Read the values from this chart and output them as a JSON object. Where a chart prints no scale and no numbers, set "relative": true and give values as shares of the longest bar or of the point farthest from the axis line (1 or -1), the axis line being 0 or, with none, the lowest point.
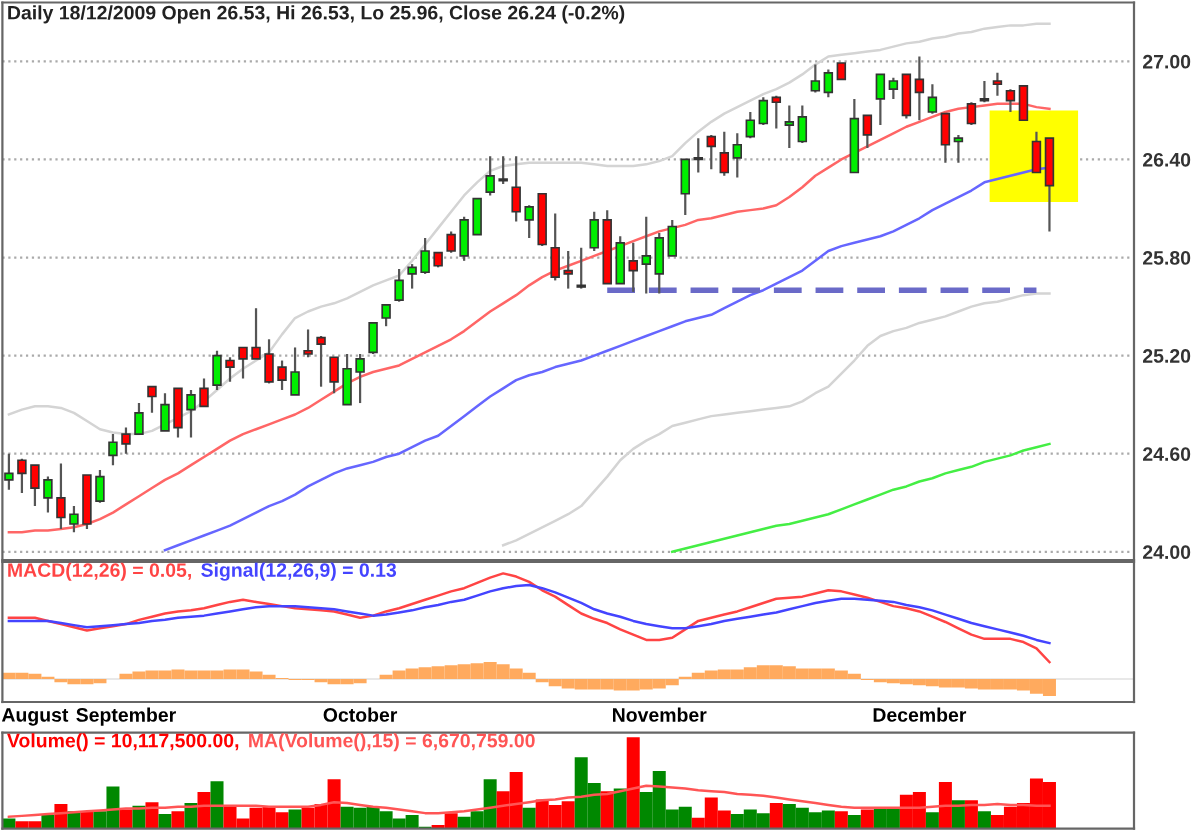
{
  "chart_data": [
    {
      "type": "candlestick",
      "title": "Daily 18/12/2009 Open 26.53, Hi 26.53, Lo 25.96, Close 26.24 (-0.2%)",
      "categories": [
        null,
        null,
        null,
        null,
        null,
        null,
        null,
        null,
        null,
        null,
        null,
        null,
        null,
        null,
        null,
        null,
        null,
        null,
        null,
        null,
        null,
        null,
        null,
        null,
        null,
        null,
        null,
        null,
        null,
        null,
        null,
        null,
        null,
        null,
        null,
        null,
        null,
        null,
        null,
        null,
        null,
        null,
        null,
        null,
        null,
        null,
        null,
        null,
        null,
        null,
        null,
        null,
        null,
        null,
        null,
        null,
        null,
        null,
        null,
        null,
        null,
        null,
        null,
        null,
        null,
        null,
        null,
        null,
        null,
        null,
        null,
        null,
        null,
        null,
        null,
        null,
        null,
        null,
        null,
        null,
        null
      ],
      "ohlc": [
        [
          24.44,
          24.6,
          24.38,
          24.48
        ],
        [
          24.56,
          24.57,
          24.36,
          24.48
        ],
        [
          24.53,
          24.53,
          24.28,
          24.39
        ],
        [
          24.33,
          24.46,
          24.24,
          24.44
        ],
        [
          24.33,
          24.54,
          24.14,
          24.21
        ],
        [
          24.17,
          24.28,
          24.12,
          24.23
        ],
        [
          24.47,
          24.47,
          24.14,
          24.17
        ],
        [
          24.31,
          24.5,
          24.3,
          24.46
        ],
        [
          24.59,
          24.72,
          24.53,
          24.67
        ],
        [
          24.72,
          24.76,
          24.6,
          24.66
        ],
        [
          24.72,
          24.91,
          24.72,
          24.85
        ],
        [
          25.01,
          25.01,
          24.85,
          24.95
        ],
        [
          24.74,
          24.97,
          24.74,
          24.9
        ],
        [
          25.0,
          25.0,
          24.7,
          24.76
        ],
        [
          24.87,
          24.99,
          24.7,
          24.96
        ],
        [
          25.0,
          25.06,
          24.89,
          24.89
        ],
        [
          25.02,
          25.23,
          24.99,
          25.2
        ],
        [
          25.17,
          25.19,
          25.04,
          25.13
        ],
        [
          25.25,
          25.25,
          25.06,
          25.18
        ],
        [
          25.25,
          25.49,
          25.18,
          25.18
        ],
        [
          25.21,
          25.3,
          25.03,
          25.04
        ],
        [
          25.13,
          25.17,
          24.99,
          25.05
        ],
        [
          24.96,
          25.25,
          24.96,
          25.1
        ],
        [
          25.23,
          25.36,
          25.19,
          25.21
        ],
        [
          25.31,
          25.32,
          25.01,
          25.27
        ],
        [
          25.19,
          25.19,
          24.97,
          25.04
        ],
        [
          24.9,
          25.21,
          24.9,
          25.12
        ],
        [
          25.1,
          25.21,
          24.91,
          25.18
        ],
        [
          25.22,
          25.4,
          25.21,
          25.4
        ],
        [
          25.43,
          25.51,
          25.38,
          25.51
        ],
        [
          25.54,
          25.73,
          25.53,
          25.66
        ],
        [
          25.7,
          25.76,
          25.61,
          25.74
        ],
        [
          25.71,
          25.92,
          25.7,
          25.84
        ],
        [
          25.83,
          25.83,
          25.74,
          25.75
        ],
        [
          25.94,
          25.96,
          25.83,
          25.84
        ],
        [
          25.81,
          26.05,
          25.78,
          26.03
        ],
        [
          25.94,
          26.16,
          25.94,
          26.16
        ],
        [
          26.2,
          26.42,
          26.18,
          26.3
        ],
        [
          26.28,
          26.42,
          26.25,
          26.27
        ],
        [
          26.23,
          26.42,
          26.02,
          26.08
        ],
        [
          26.03,
          26.12,
          25.92,
          26.11
        ],
        [
          26.19,
          26.19,
          25.87,
          25.88
        ],
        [
          25.86,
          26.07,
          25.66,
          25.68
        ],
        [
          25.72,
          25.84,
          25.61,
          25.7
        ],
        [
          25.62,
          25.86,
          25.61,
          25.63
        ],
        [
          25.86,
          26.08,
          25.84,
          26.03
        ],
        [
          26.03,
          26.09,
          25.64,
          25.64
        ],
        [
          25.64,
          25.93,
          25.64,
          25.89
        ],
        [
          25.78,
          25.89,
          25.59,
          25.72
        ],
        [
          25.76,
          26.05,
          25.58,
          25.81
        ],
        [
          25.7,
          25.95,
          25.58,
          25.92
        ],
        [
          25.81,
          26.03,
          25.81,
          25.99
        ],
        [
          26.19,
          26.4,
          26.06,
          26.4
        ],
        [
          26.4,
          26.53,
          26.32,
          26.41
        ],
        [
          26.54,
          26.55,
          26.34,
          26.48
        ],
        [
          26.44,
          26.57,
          26.3,
          26.32
        ],
        [
          26.41,
          26.56,
          26.29,
          26.49
        ],
        [
          26.54,
          26.69,
          26.53,
          26.64
        ],
        [
          26.62,
          26.78,
          26.61,
          26.76
        ],
        [
          26.78,
          26.79,
          26.59,
          26.75
        ],
        [
          26.61,
          26.73,
          26.47,
          26.63
        ],
        [
          26.51,
          26.73,
          26.5,
          26.66
        ],
        [
          26.82,
          26.98,
          26.81,
          26.88
        ],
        [
          26.81,
          26.95,
          26.78,
          26.93
        ],
        [
          26.99,
          26.99,
          26.89,
          26.89
        ],
        [
          26.32,
          26.77,
          26.32,
          26.65
        ],
        [
          26.67,
          26.67,
          26.47,
          26.55
        ],
        [
          26.77,
          26.92,
          26.61,
          26.92
        ],
        [
          26.83,
          26.9,
          26.77,
          26.88
        ],
        [
          26.92,
          26.92,
          26.65,
          26.67
        ],
        [
          26.89,
          27.03,
          26.64,
          26.81
        ],
        [
          26.69,
          26.86,
          26.68,
          26.78
        ],
        [
          26.68,
          26.68,
          26.38,
          26.49
        ],
        [
          26.51,
          26.55,
          26.38,
          26.53
        ],
        [
          26.74,
          26.75,
          26.61,
          26.62
        ],
        [
          26.76,
          26.88,
          26.75,
          26.77
        ],
        [
          26.88,
          26.93,
          26.79,
          26.86
        ],
        [
          26.82,
          26.83,
          26.69,
          26.76
        ],
        [
          26.85,
          26.85,
          26.64,
          26.64
        ],
        [
          26.51,
          26.57,
          26.32,
          26.32
        ],
        [
          26.53,
          26.53,
          25.96,
          26.24
        ]
      ],
      "colors": [
        "#00ee00",
        "#ff0000",
        "#ff0000",
        "#00ee00",
        "#ff0000",
        "#00ee00",
        "#ff0000",
        "#00ee00",
        "#00ee00",
        "#ff0000",
        "#00ee00",
        "#ff0000",
        "#00ee00",
        "#ff0000",
        "#00ee00",
        "#ff0000",
        "#00ee00",
        "#ff0000",
        "#ff0000",
        "#ff0000",
        "#ff0000",
        "#ff0000",
        "#00ee00",
        "#ff0000",
        "#ff0000",
        "#ff0000",
        "#00ee00",
        "#00ee00",
        "#00ee00",
        "#00ee00",
        "#00ee00",
        "#00ee00",
        "#00ee00",
        "#ff0000",
        "#ff0000",
        "#00ee00",
        "#00ee00",
        "#00ee00",
        "#ff0000",
        "#ff0000",
        "#00ee00",
        "#ff0000",
        "#ff0000",
        "#ff0000",
        "#00ee00",
        "#00ee00",
        "#ff0000",
        "#00ee00",
        "#ff0000",
        "#00ee00",
        "#00ee00",
        "#00ee00",
        "#00ee00",
        "#00ee00",
        "#ff0000",
        "#ff0000",
        "#00ee00",
        "#00ee00",
        "#00ee00",
        "#ff0000",
        "#00ee00",
        "#00ee00",
        "#00ee00",
        "#00ee00",
        "#ff0000",
        "#00ee00",
        "#ff0000",
        "#00ee00",
        "#00ee00",
        "#ff0000",
        "#ff0000",
        "#00ee00",
        "#ff0000",
        "#00ee00",
        "#ff0000",
        "#00ee00",
        "#ff0000",
        "#ff0000",
        "#ff0000",
        "#ff0000",
        "#ff0000"
      ],
      "series": [
        {
          "type": "line",
          "color": "#ff6666",
          "values": [
            24.12,
            24.12,
            24.13,
            24.13,
            24.14,
            24.15,
            24.17,
            24.2,
            24.24,
            24.29,
            24.34,
            24.39,
            24.44,
            24.48,
            24.53,
            24.58,
            24.63,
            24.68,
            24.72,
            24.75,
            24.78,
            24.81,
            24.84,
            24.88,
            24.93,
            24.98,
            25.03,
            25.07,
            25.1,
            25.12,
            25.14,
            25.18,
            25.22,
            25.26,
            25.3,
            25.35,
            25.41,
            25.47,
            25.52,
            25.57,
            25.63,
            25.68,
            25.72,
            25.75,
            25.78,
            25.81,
            25.84,
            25.87,
            25.9,
            25.93,
            25.96,
            25.98,
            26.0,
            26.03,
            26.04,
            26.06,
            26.08,
            26.09,
            26.1,
            26.12,
            26.17,
            26.23,
            26.3,
            26.35,
            26.4,
            26.44,
            26.48,
            26.52,
            26.56,
            26.6,
            26.63,
            26.66,
            26.69,
            26.71,
            26.72,
            26.73,
            26.74,
            26.74,
            26.74,
            26.72,
            26.71
          ]
        },
        {
          "type": "line",
          "color": "#6666ff",
          "values": [
            null,
            null,
            null,
            null,
            null,
            null,
            null,
            null,
            null,
            null,
            null,
            null,
            24.01,
            24.04,
            24.07,
            24.1,
            24.13,
            24.16,
            24.2,
            24.24,
            24.28,
            24.31,
            24.35,
            24.4,
            24.44,
            24.48,
            24.51,
            24.53,
            24.55,
            24.58,
            24.6,
            24.64,
            24.68,
            24.71,
            24.77,
            24.83,
            24.89,
            24.95,
            25.0,
            25.05,
            25.08,
            25.1,
            25.13,
            25.15,
            25.17,
            25.2,
            25.23,
            25.26,
            25.29,
            25.32,
            25.35,
            25.38,
            25.41,
            25.43,
            25.45,
            25.49,
            25.53,
            25.57,
            25.6,
            25.64,
            25.68,
            25.72,
            25.78,
            25.84,
            25.87,
            25.89,
            25.91,
            25.93,
            25.96,
            26.0,
            26.04,
            26.09,
            26.13,
            26.17,
            26.21,
            26.26,
            26.28,
            26.3,
            26.32,
            26.34,
            26.35
          ]
        },
        {
          "type": "line",
          "color": "#44ee44",
          "values": [
            null,
            null,
            null,
            null,
            null,
            null,
            null,
            null,
            null,
            null,
            null,
            null,
            null,
            null,
            null,
            null,
            null,
            null,
            null,
            null,
            null,
            null,
            null,
            null,
            null,
            null,
            null,
            null,
            null,
            null,
            null,
            null,
            null,
            null,
            null,
            null,
            null,
            null,
            null,
            null,
            null,
            null,
            null,
            null,
            null,
            null,
            null,
            null,
            null,
            null,
            null,
            24.0,
            24.02,
            24.04,
            24.06,
            24.08,
            24.1,
            24.12,
            24.14,
            24.16,
            24.17,
            24.19,
            24.21,
            24.23,
            24.26,
            24.29,
            24.32,
            24.35,
            24.38,
            24.4,
            24.43,
            24.45,
            24.48,
            24.5,
            24.52,
            24.55,
            24.57,
            24.59,
            24.62,
            24.64,
            24.66
          ]
        },
        {
          "type": "line",
          "color": "#d4d4d4",
          "values": [
            24.84,
            24.87,
            24.89,
            24.89,
            24.88,
            24.85,
            24.8,
            24.75,
            24.73,
            24.72,
            24.72,
            24.74,
            24.78,
            24.82,
            24.86,
            24.92,
            24.99,
            25.06,
            25.12,
            25.17,
            25.22,
            25.33,
            25.43,
            25.47,
            25.5,
            25.52,
            25.55,
            25.59,
            25.63,
            25.66,
            25.69,
            25.78,
            25.88,
            25.98,
            26.08,
            26.18,
            26.26,
            26.33,
            26.36,
            26.37,
            26.38,
            26.38,
            26.38,
            26.38,
            26.38,
            26.37,
            26.36,
            26.36,
            26.36,
            26.37,
            26.39,
            26.42,
            26.5,
            26.57,
            26.63,
            26.68,
            26.72,
            26.76,
            26.8,
            26.83,
            26.87,
            26.92,
            26.98,
            27.03,
            27.04,
            27.05,
            27.06,
            27.07,
            27.09,
            27.11,
            27.12,
            27.14,
            27.15,
            27.17,
            27.18,
            27.2,
            27.21,
            27.22,
            27.22,
            27.23,
            27.23
          ]
        },
        {
          "type": "line",
          "color": "#d4d4d4",
          "values": [
            null,
            null,
            null,
            null,
            null,
            null,
            null,
            null,
            null,
            null,
            null,
            null,
            null,
            null,
            null,
            null,
            null,
            null,
            null,
            null,
            null,
            null,
            null,
            null,
            null,
            null,
            null,
            null,
            null,
            null,
            null,
            null,
            null,
            null,
            null,
            null,
            null,
            null,
            24.04,
            24.07,
            24.11,
            24.15,
            24.19,
            24.23,
            24.28,
            24.37,
            24.46,
            24.56,
            24.63,
            24.68,
            24.72,
            24.77,
            24.79,
            24.81,
            24.83,
            24.84,
            24.85,
            24.86,
            24.87,
            24.88,
            24.89,
            24.92,
            24.97,
            25.01,
            25.09,
            25.17,
            25.26,
            25.32,
            25.35,
            25.37,
            25.4,
            25.42,
            25.44,
            25.47,
            25.5,
            25.52,
            25.53,
            25.55,
            25.57,
            25.58,
            25.58
          ]
        },
        {
          "type": "line",
          "color": "#6a6ac8",
          "line_style": "dashed",
          "values": [
            null,
            null,
            null,
            null,
            null,
            null,
            null,
            null,
            null,
            null,
            null,
            null,
            null,
            null,
            null,
            null,
            null,
            null,
            null,
            null,
            null,
            null,
            null,
            null,
            null,
            null,
            null,
            null,
            null,
            null,
            null,
            null,
            null,
            null,
            null,
            null,
            null,
            null,
            null,
            null,
            null,
            null,
            null,
            null,
            null,
            null,
            25.6,
            25.6,
            25.6,
            25.6,
            25.6,
            25.6,
            25.6,
            25.6,
            25.6,
            25.6,
            25.6,
            25.6,
            25.6,
            25.6,
            25.6,
            25.6,
            25.6,
            25.6,
            25.6,
            25.6,
            25.6,
            25.6,
            25.6,
            25.6,
            25.6,
            25.6,
            25.6,
            25.6,
            25.6,
            25.6,
            25.6,
            25.6,
            25.6,
            25.6,
            null
          ]
        }
      ],
      "ylim": [
        23.95,
        27.36
      ],
      "yticks": [
        {
          "value": 24.0,
          "label": "24.00"
        },
        {
          "value": 24.6,
          "label": "24.60"
        },
        {
          "value": 25.2,
          "label": "25.20"
        },
        {
          "value": 25.8,
          "label": "25.80"
        },
        {
          "value": 26.4,
          "label": "26.40"
        },
        {
          "value": 27.0,
          "label": "27.00"
        }
      ],
      "grid": "y",
      "tick_labels": "y"
    },
    {
      "type": "line",
      "relative": true,
      "legend": "top left",
      "tick_labels": "x",
      "categories": [
        null,
        null,
        "August",
        null,
        null,
        null,
        null,
        null,
        null,
        "September",
        null,
        null,
        null,
        null,
        null,
        null,
        null,
        null,
        null,
        null,
        null,
        null,
        null,
        null,
        null,
        null,
        null,
        "October",
        null,
        null,
        null,
        null,
        null,
        null,
        null,
        null,
        null,
        null,
        null,
        null,
        null,
        null,
        null,
        null,
        null,
        null,
        null,
        null,
        null,
        null,
        "November",
        null,
        null,
        null,
        null,
        null,
        null,
        null,
        null,
        null,
        null,
        null,
        null,
        null,
        null,
        null,
        null,
        null,
        null,
        null,
        "December",
        null,
        null,
        null,
        null,
        null,
        null,
        null,
        null,
        null,
        null
      ],
      "series": [
        {
          "type": "bar",
          "color": "#ffaa5e",
          "values": [
            0.06,
            0.06,
            0.05,
            0.02,
            -0.03,
            -0.05,
            -0.05,
            -0.04,
            0.0,
            0.05,
            0.07,
            0.08,
            0.08,
            0.09,
            0.08,
            0.08,
            0.08,
            0.09,
            0.09,
            0.07,
            0.04,
            0.01,
            -0.01,
            -0.01,
            -0.03,
            -0.05,
            -0.05,
            -0.04,
            0.0,
            0.04,
            0.08,
            0.1,
            0.11,
            0.12,
            0.13,
            0.14,
            0.15,
            0.16,
            0.14,
            0.1,
            0.06,
            -0.03,
            -0.07,
            -0.09,
            -0.1,
            -0.1,
            -0.1,
            -0.11,
            -0.11,
            -0.1,
            -0.09,
            -0.06,
            0.02,
            0.06,
            0.08,
            0.09,
            0.09,
            0.11,
            0.13,
            0.13,
            0.12,
            0.1,
            0.1,
            0.1,
            0.08,
            0.05,
            -0.01,
            -0.03,
            -0.04,
            -0.05,
            -0.06,
            -0.07,
            -0.08,
            -0.08,
            -0.09,
            -0.1,
            -0.1,
            -0.1,
            -0.11,
            -0.14,
            -0.16
          ]
        },
        {
          "name": "MACD(12,26) = 0.05,",
          "color": "#ff4444",
          "values": [
            0.58,
            0.58,
            0.58,
            0.55,
            0.52,
            0.49,
            0.46,
            0.48,
            0.5,
            0.52,
            0.56,
            0.59,
            0.62,
            0.64,
            0.65,
            0.67,
            0.7,
            0.73,
            0.75,
            0.73,
            0.71,
            0.69,
            0.67,
            0.66,
            0.65,
            0.64,
            0.61,
            0.58,
            0.6,
            0.64,
            0.67,
            0.71,
            0.75,
            0.79,
            0.83,
            0.86,
            0.91,
            0.96,
            1.0,
            0.97,
            0.92,
            0.84,
            0.78,
            0.7,
            0.62,
            0.57,
            0.53,
            0.47,
            0.42,
            0.37,
            0.37,
            0.39,
            0.47,
            0.55,
            0.58,
            0.61,
            0.64,
            0.68,
            0.72,
            0.76,
            0.77,
            0.78,
            0.81,
            0.84,
            0.83,
            0.8,
            0.77,
            0.73,
            0.69,
            0.67,
            0.64,
            0.59,
            0.54,
            0.48,
            0.42,
            0.38,
            0.38,
            0.38,
            0.35,
            0.29,
            0.16
          ]
        },
        {
          "name": "Signal(12,26,9) = 0.13",
          "color": "#4444ff",
          "values": [
            0.55,
            0.55,
            0.55,
            0.55,
            0.53,
            0.51,
            0.49,
            0.5,
            0.51,
            0.52,
            0.53,
            0.55,
            0.56,
            0.58,
            0.59,
            0.6,
            0.62,
            0.64,
            0.66,
            0.68,
            0.69,
            0.69,
            0.69,
            0.68,
            0.67,
            0.66,
            0.64,
            0.62,
            0.6,
            0.61,
            0.63,
            0.65,
            0.68,
            0.7,
            0.73,
            0.75,
            0.79,
            0.83,
            0.86,
            0.88,
            0.89,
            0.86,
            0.82,
            0.77,
            0.72,
            0.66,
            0.62,
            0.59,
            0.55,
            0.52,
            0.5,
            0.48,
            0.48,
            0.5,
            0.52,
            0.55,
            0.57,
            0.59,
            0.61,
            0.63,
            0.66,
            0.69,
            0.72,
            0.74,
            0.76,
            0.76,
            0.75,
            0.74,
            0.73,
            0.7,
            0.68,
            0.65,
            0.61,
            0.57,
            0.53,
            0.5,
            0.47,
            0.44,
            0.41,
            0.37,
            0.34
          ]
        }
      ]
    },
    {
      "type": "bar",
      "relative": true,
      "legend": "top left",
      "tick_labels": false,
      "categories": [
        null,
        null,
        null,
        null,
        null,
        null,
        null,
        null,
        null,
        null,
        null,
        null,
        null,
        null,
        null,
        null,
        null,
        null,
        null,
        null,
        null,
        null,
        null,
        null,
        null,
        null,
        null,
        null,
        null,
        null,
        null,
        null,
        null,
        null,
        null,
        null,
        null,
        null,
        null,
        null,
        null,
        null,
        null,
        null,
        null,
        null,
        null,
        null,
        null,
        null,
        null,
        null,
        null,
        null,
        null,
        null,
        null,
        null,
        null,
        null,
        null,
        null,
        null,
        null,
        null,
        null,
        null,
        null,
        null,
        null,
        null,
        null,
        null,
        null,
        null,
        null,
        null,
        null,
        null,
        null,
        null
      ],
      "series": [
        {
          "name": "Volume() = 10,117,500.00,",
          "color": "#ff0000",
          "values": [
            0.11,
            0.08,
            0.08,
            0.15,
            0.27,
            0.19,
            0.19,
            0.19,
            0.46,
            0.21,
            0.25,
            0.29,
            0.16,
            0.19,
            0.28,
            0.4,
            0.52,
            0.24,
            0.11,
            0.23,
            0.24,
            0.18,
            0.21,
            0.23,
            0.27,
            0.54,
            0.24,
            0.23,
            0.24,
            0.19,
            0.11,
            0.15,
            0.02,
            0.04,
            0.17,
            0.13,
            0.19,
            0.54,
            0.41,
            0.62,
            0.23,
            0.32,
            0.26,
            0.3,
            0.78,
            0.5,
            0.41,
            0.44,
            1.0,
            0.4,
            0.63,
            0.21,
            0.24,
            0.12,
            0.34,
            0.2,
            0.16,
            0.21,
            0.17,
            0.28,
            0.27,
            0.23,
            0.18,
            0.2,
            0.19,
            0.15,
            0.21,
            0.23,
            0.22,
            0.37,
            0.4,
            0.18,
            0.51,
            0.31,
            0.31,
            0.19,
            0.15,
            0.24,
            0.28,
            0.55,
            0.51
          ],
          "colors": [
            "#008800",
            "#ff0000",
            "#ff0000",
            "#008800",
            "#ff0000",
            "#008800",
            "#ff0000",
            "#008800",
            "#008800",
            "#ff0000",
            "#008800",
            "#ff0000",
            "#008800",
            "#ff0000",
            "#008800",
            "#ff0000",
            "#008800",
            "#ff0000",
            "#ff0000",
            "#ff0000",
            "#ff0000",
            "#ff0000",
            "#008800",
            "#ff0000",
            "#ff0000",
            "#ff0000",
            "#008800",
            "#008800",
            "#008800",
            "#008800",
            "#008800",
            "#008800",
            "#008800",
            "#ff0000",
            "#ff0000",
            "#008800",
            "#008800",
            "#008800",
            "#ff0000",
            "#ff0000",
            "#008800",
            "#ff0000",
            "#ff0000",
            "#ff0000",
            "#008800",
            "#008800",
            "#ff0000",
            "#008800",
            "#ff0000",
            "#008800",
            "#008800",
            "#008800",
            "#008800",
            "#ff0000",
            "#ff0000",
            "#ff0000",
            "#008800",
            "#008800",
            "#008800",
            "#ff0000",
            "#008800",
            "#008800",
            "#008800",
            "#008800",
            "#ff0000",
            "#008800",
            "#ff0000",
            "#008800",
            "#008800",
            "#ff0000",
            "#ff0000",
            "#008800",
            "#ff0000",
            "#008800",
            "#ff0000",
            "#008800",
            "#ff0000",
            "#ff0000",
            "#ff0000",
            "#ff0000",
            "#ff0000"
          ]
        },
        {
          "type": "line",
          "name": "MA(Volume(),15) = 6,670,759.00",
          "color": "#ff5555",
          "values": [
            0.13,
            0.14,
            0.15,
            0.16,
            0.17,
            0.18,
            0.19,
            0.2,
            0.21,
            0.22,
            0.22,
            0.23,
            0.23,
            0.24,
            0.24,
            0.25,
            0.25,
            0.25,
            0.25,
            0.25,
            0.24,
            0.24,
            0.24,
            0.24,
            0.26,
            0.29,
            0.28,
            0.26,
            0.24,
            0.23,
            0.21,
            0.19,
            0.17,
            0.17,
            0.18,
            0.19,
            0.21,
            0.23,
            0.25,
            0.27,
            0.29,
            0.31,
            0.32,
            0.34,
            0.35,
            0.37,
            0.38,
            0.41,
            0.44,
            0.47,
            0.46,
            0.45,
            0.44,
            0.42,
            0.41,
            0.4,
            0.38,
            0.37,
            0.36,
            0.34,
            0.32,
            0.3,
            0.28,
            0.26,
            0.24,
            0.23,
            0.23,
            0.23,
            0.23,
            0.23,
            0.23,
            0.24,
            0.25,
            0.25,
            0.26,
            0.26,
            0.27,
            0.26,
            0.26,
            0.25,
            0.25
          ]
        }
      ]
    }
  ]
}
